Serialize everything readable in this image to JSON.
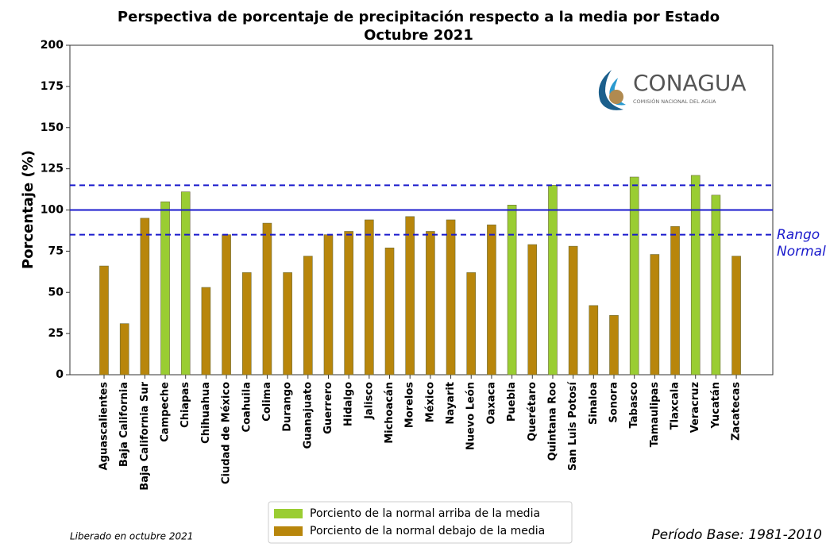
{
  "chart_data": {
    "type": "bar",
    "title": "Perspectiva de porcentaje de precipitación respecto a la media por Estado",
    "subtitle": "Octubre 2021",
    "y_label": "Porcentaje (%)",
    "categories": [
      "Aguascalientes",
      "Baja California",
      "Baja California Sur",
      "Campeche",
      "Chiapas",
      "Chihuahua",
      "Ciudad de México",
      "Coahuila",
      "Colima",
      "Durango",
      "Guanajuato",
      "Guerrero",
      "Hidalgo",
      "Jalisco",
      "Michoacán",
      "Morelos",
      "México",
      "Nayarit",
      "Nuevo León",
      "Oaxaca",
      "Puebla",
      "Querétaro",
      "Quintana Roo",
      "San Luis Potosí",
      "Sinaloa",
      "Sonora",
      "Tabasco",
      "Tamaulipas",
      "Tlaxcala",
      "Veracruz",
      "Yucatán",
      "Zacatecas"
    ],
    "series": [
      {
        "name": "Porciento de la normal arriba de la media",
        "color": "#9acd32",
        "values": [
          null,
          null,
          null,
          105,
          111,
          null,
          null,
          null,
          null,
          null,
          null,
          null,
          null,
          null,
          null,
          null,
          null,
          null,
          null,
          null,
          103,
          null,
          115,
          null,
          null,
          null,
          120,
          null,
          null,
          121,
          109,
          null
        ]
      },
      {
        "name": "Porciento de la normal debajo de la media",
        "color": "#b8860b",
        "values": [
          66,
          31,
          95,
          null,
          null,
          53,
          85,
          62,
          92,
          62,
          72,
          85,
          87,
          94,
          77,
          96,
          87,
          94,
          62,
          91,
          null,
          79,
          null,
          78,
          42,
          36,
          null,
          73,
          90,
          null,
          null,
          72
        ]
      }
    ],
    "ylim": [
      0,
      200
    ],
    "yticks": [
      0,
      25,
      50,
      75,
      100,
      125,
      150,
      175,
      200
    ],
    "reference_lines": [
      {
        "value": 100,
        "style": "solid",
        "color": "#1a1acc"
      },
      {
        "value": 85,
        "style": "dashed",
        "color": "#1a1acc"
      },
      {
        "value": 115,
        "style": "dashed",
        "color": "#1a1acc"
      }
    ],
    "annotation": "Rango Normal",
    "logo": {
      "name": "CONAGUA",
      "subtitle": "COMISIÓN NACIONAL DEL AGUA"
    },
    "footer_left": "Liberado en octubre 2021",
    "footer_right": "Período Base: 1981-2010",
    "legend": "lower center"
  }
}
